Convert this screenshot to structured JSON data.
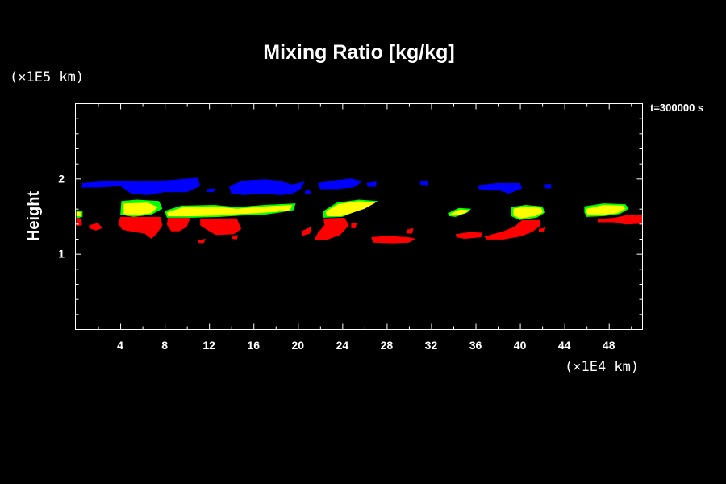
{
  "chart_data": {
    "type": "heatmap",
    "title": "Mixing Ratio [kg/kg]",
    "ylabel": "Height",
    "yunit": "(×1E5 km)",
    "xunit": "(×1E4 km)",
    "time_label": "t=300000 s",
    "xlim": [
      0,
      51
    ],
    "ylim": [
      0,
      3
    ],
    "xticks": [
      4,
      8,
      12,
      16,
      20,
      24,
      28,
      32,
      36,
      40,
      44,
      48
    ],
    "yticks": [
      1,
      2
    ],
    "x_minor_step": 2,
    "y_minor_step": 0.2,
    "grid": false,
    "colors": {
      "blue": "#0000ff",
      "red": "#ff0000",
      "yellow": "#ffff00",
      "green": "#00ff00"
    },
    "regions": [
      {
        "color": "blue",
        "polygon": [
          [
            0.6,
            1.94
          ],
          [
            3,
            1.97
          ],
          [
            6,
            1.96
          ],
          [
            8.5,
            1.98
          ],
          [
            11,
            2.01
          ],
          [
            11.2,
            1.9
          ],
          [
            10,
            1.82
          ],
          [
            8,
            1.82
          ],
          [
            6.5,
            1.78
          ],
          [
            5,
            1.8
          ],
          [
            4,
            1.9
          ],
          [
            2,
            1.88
          ],
          [
            0.5,
            1.88
          ]
        ]
      },
      {
        "color": "blue",
        "polygon": [
          [
            11.8,
            1.86
          ],
          [
            12.6,
            1.87
          ],
          [
            12.4,
            1.82
          ],
          [
            11.8,
            1.82
          ]
        ]
      },
      {
        "color": "blue",
        "polygon": [
          [
            13.8,
            1.9
          ],
          [
            15,
            1.97
          ],
          [
            17,
            1.99
          ],
          [
            18.3,
            1.97
          ],
          [
            19.5,
            1.92
          ],
          [
            20.6,
            1.96
          ],
          [
            20.2,
            1.85
          ],
          [
            19.5,
            1.8
          ],
          [
            18.5,
            1.78
          ],
          [
            16.5,
            1.8
          ],
          [
            15.2,
            1.78
          ],
          [
            14,
            1.8
          ]
        ]
      },
      {
        "color": "blue",
        "polygon": [
          [
            20.6,
            1.83
          ],
          [
            21,
            1.86
          ],
          [
            21.2,
            1.8
          ],
          [
            20.7,
            1.79
          ]
        ]
      },
      {
        "color": "blue",
        "polygon": [
          [
            21.8,
            1.94
          ],
          [
            23.5,
            1.98
          ],
          [
            24.8,
            2.0
          ],
          [
            25.8,
            1.96
          ],
          [
            25,
            1.88
          ],
          [
            23.5,
            1.86
          ],
          [
            22,
            1.86
          ]
        ]
      },
      {
        "color": "blue",
        "polygon": [
          [
            26.2,
            1.94
          ],
          [
            27.1,
            1.96
          ],
          [
            27.0,
            1.89
          ],
          [
            26.3,
            1.89
          ]
        ]
      },
      {
        "color": "blue",
        "polygon": [
          [
            31,
            1.96
          ],
          [
            31.8,
            1.97
          ],
          [
            31.7,
            1.91
          ],
          [
            31,
            1.92
          ]
        ]
      },
      {
        "color": "blue",
        "polygon": [
          [
            36.2,
            1.91
          ],
          [
            38,
            1.94
          ],
          [
            40,
            1.94
          ],
          [
            40.2,
            1.87
          ],
          [
            39,
            1.8
          ],
          [
            38.2,
            1.84
          ],
          [
            37,
            1.84
          ],
          [
            36.3,
            1.86
          ]
        ]
      },
      {
        "color": "blue",
        "polygon": [
          [
            42.2,
            1.92
          ],
          [
            42.8,
            1.93
          ],
          [
            42.8,
            1.87
          ],
          [
            42.3,
            1.87
          ]
        ]
      },
      {
        "color": "green",
        "polygon": [
          [
            0.05,
            1.58
          ],
          [
            0.6,
            1.57
          ],
          [
            0.6,
            1.49
          ],
          [
            0.05,
            1.47
          ]
        ]
      },
      {
        "color": "yellow",
        "polygon": [
          [
            0.05,
            1.56
          ],
          [
            0.5,
            1.55
          ],
          [
            0.5,
            1.5
          ],
          [
            0.05,
            1.5
          ]
        ]
      },
      {
        "color": "green",
        "polygon": [
          [
            4.1,
            1.7
          ],
          [
            5.5,
            1.72
          ],
          [
            7.5,
            1.7
          ],
          [
            7.8,
            1.6
          ],
          [
            6.8,
            1.52
          ],
          [
            5.2,
            1.49
          ],
          [
            4.0,
            1.52
          ]
        ]
      },
      {
        "color": "yellow",
        "polygon": [
          [
            4.3,
            1.67
          ],
          [
            6.5,
            1.68
          ],
          [
            7.4,
            1.62
          ],
          [
            6.8,
            1.54
          ],
          [
            5.2,
            1.51
          ],
          [
            4.3,
            1.53
          ]
        ]
      },
      {
        "color": "green",
        "polygon": [
          [
            8.0,
            1.57
          ],
          [
            9.5,
            1.64
          ],
          [
            12.5,
            1.65
          ],
          [
            14.5,
            1.62
          ],
          [
            17,
            1.65
          ],
          [
            19.8,
            1.67
          ],
          [
            19.6,
            1.58
          ],
          [
            18.5,
            1.55
          ],
          [
            17,
            1.52
          ],
          [
            15,
            1.51
          ],
          [
            13,
            1.49
          ],
          [
            10.5,
            1.48
          ],
          [
            8.2,
            1.48
          ]
        ]
      },
      {
        "color": "yellow",
        "polygon": [
          [
            8.2,
            1.55
          ],
          [
            9.7,
            1.62
          ],
          [
            12.5,
            1.63
          ],
          [
            14.5,
            1.6
          ],
          [
            17,
            1.63
          ],
          [
            19.5,
            1.65
          ],
          [
            19.3,
            1.58
          ],
          [
            18.2,
            1.56
          ],
          [
            16.5,
            1.54
          ],
          [
            14.8,
            1.53
          ],
          [
            13,
            1.51
          ],
          [
            10.5,
            1.5
          ],
          [
            8.3,
            1.5
          ]
        ]
      },
      {
        "color": "green",
        "polygon": [
          [
            22.3,
            1.57
          ],
          [
            23.5,
            1.68
          ],
          [
            25.5,
            1.72
          ],
          [
            27.2,
            1.7
          ],
          [
            26.2,
            1.62
          ],
          [
            25,
            1.55
          ],
          [
            24,
            1.49
          ],
          [
            22.3,
            1.48
          ]
        ]
      },
      {
        "color": "yellow",
        "polygon": [
          [
            22.5,
            1.56
          ],
          [
            23.6,
            1.66
          ],
          [
            25.5,
            1.7
          ],
          [
            27,
            1.68
          ],
          [
            26,
            1.6
          ],
          [
            24.8,
            1.54
          ],
          [
            23.9,
            1.5
          ],
          [
            22.6,
            1.5
          ]
        ]
      },
      {
        "color": "green",
        "polygon": [
          [
            33.5,
            1.54
          ],
          [
            34.5,
            1.61
          ],
          [
            35.6,
            1.6
          ],
          [
            35.3,
            1.55
          ],
          [
            34.2,
            1.49
          ],
          [
            33.6,
            1.5
          ]
        ]
      },
      {
        "color": "yellow",
        "polygon": [
          [
            33.7,
            1.53
          ],
          [
            34.6,
            1.59
          ],
          [
            35.4,
            1.58
          ],
          [
            35.1,
            1.54
          ],
          [
            34.2,
            1.51
          ],
          [
            33.8,
            1.51
          ]
        ]
      },
      {
        "color": "green",
        "polygon": [
          [
            39.2,
            1.62
          ],
          [
            40.5,
            1.65
          ],
          [
            42,
            1.63
          ],
          [
            42.3,
            1.55
          ],
          [
            41.5,
            1.48
          ],
          [
            40,
            1.45
          ],
          [
            39.2,
            1.5
          ]
        ]
      },
      {
        "color": "yellow",
        "polygon": [
          [
            39.4,
            1.6
          ],
          [
            40.5,
            1.63
          ],
          [
            41.9,
            1.61
          ],
          [
            42.1,
            1.55
          ],
          [
            41.4,
            1.5
          ],
          [
            40,
            1.47
          ],
          [
            39.4,
            1.51
          ]
        ]
      },
      {
        "color": "green",
        "polygon": [
          [
            45.8,
            1.63
          ],
          [
            47.5,
            1.67
          ],
          [
            49.5,
            1.66
          ],
          [
            49.8,
            1.6
          ],
          [
            49,
            1.53
          ],
          [
            47.5,
            1.5
          ],
          [
            46,
            1.49
          ],
          [
            45.8,
            1.55
          ]
        ]
      },
      {
        "color": "yellow",
        "polygon": [
          [
            46,
            1.6
          ],
          [
            47.5,
            1.65
          ],
          [
            49.3,
            1.64
          ],
          [
            49.5,
            1.6
          ],
          [
            48.8,
            1.54
          ],
          [
            47.5,
            1.52
          ],
          [
            46.1,
            1.51
          ],
          [
            46,
            1.55
          ]
        ]
      },
      {
        "color": "red",
        "polygon": [
          [
            0.05,
            1.48
          ],
          [
            0.5,
            1.47
          ],
          [
            0.55,
            1.38
          ],
          [
            0.05,
            1.37
          ]
        ]
      },
      {
        "color": "red",
        "polygon": [
          [
            1.2,
            1.38
          ],
          [
            2,
            1.41
          ],
          [
            2.4,
            1.34
          ],
          [
            1.8,
            1.31
          ],
          [
            1.2,
            1.34
          ]
        ]
      },
      {
        "color": "red",
        "polygon": [
          [
            4.0,
            1.49
          ],
          [
            7.6,
            1.49
          ],
          [
            7.8,
            1.38
          ],
          [
            7.3,
            1.27
          ],
          [
            6.8,
            1.2
          ],
          [
            6.2,
            1.27
          ],
          [
            5.2,
            1.29
          ],
          [
            4.2,
            1.32
          ],
          [
            3.8,
            1.4
          ]
        ]
      },
      {
        "color": "red",
        "polygon": [
          [
            8.3,
            1.48
          ],
          [
            10.3,
            1.48
          ],
          [
            10.0,
            1.36
          ],
          [
            9.3,
            1.3
          ],
          [
            8.6,
            1.3
          ],
          [
            8.2,
            1.39
          ]
        ]
      },
      {
        "color": "red",
        "polygon": [
          [
            11.0,
            1.18
          ],
          [
            11.7,
            1.2
          ],
          [
            11.5,
            1.14
          ],
          [
            11.0,
            1.15
          ]
        ]
      },
      {
        "color": "red",
        "polygon": [
          [
            11.2,
            1.47
          ],
          [
            14.5,
            1.47
          ],
          [
            14.9,
            1.33
          ],
          [
            14.2,
            1.26
          ],
          [
            12.6,
            1.25
          ],
          [
            11.8,
            1.32
          ],
          [
            11.2,
            1.38
          ]
        ]
      },
      {
        "color": "red",
        "polygon": [
          [
            14.1,
            1.24
          ],
          [
            14.6,
            1.25
          ],
          [
            14.5,
            1.19
          ],
          [
            14.1,
            1.2
          ]
        ]
      },
      {
        "color": "red",
        "polygon": [
          [
            20.3,
            1.3
          ],
          [
            21.2,
            1.36
          ],
          [
            21.1,
            1.27
          ],
          [
            20.4,
            1.24
          ]
        ]
      },
      {
        "color": "red",
        "polygon": [
          [
            22.3,
            1.47
          ],
          [
            24.2,
            1.48
          ],
          [
            24.6,
            1.38
          ],
          [
            23.8,
            1.25
          ],
          [
            22.5,
            1.18
          ],
          [
            21.5,
            1.19
          ],
          [
            21.8,
            1.28
          ],
          [
            22.4,
            1.38
          ]
        ]
      },
      {
        "color": "red",
        "polygon": [
          [
            24.8,
            1.4
          ],
          [
            25.3,
            1.41
          ],
          [
            25.2,
            1.34
          ],
          [
            24.8,
            1.34
          ]
        ]
      },
      {
        "color": "red",
        "polygon": [
          [
            26.6,
            1.22
          ],
          [
            28,
            1.24
          ],
          [
            30,
            1.22
          ],
          [
            30.6,
            1.2
          ],
          [
            30.0,
            1.15
          ],
          [
            28.5,
            1.14
          ],
          [
            26.8,
            1.15
          ]
        ]
      },
      {
        "color": "red",
        "polygon": [
          [
            29.8,
            1.32
          ],
          [
            30.4,
            1.34
          ],
          [
            30.3,
            1.27
          ],
          [
            29.8,
            1.27
          ]
        ]
      },
      {
        "color": "red",
        "polygon": [
          [
            34.2,
            1.26
          ],
          [
            35.5,
            1.29
          ],
          [
            36.6,
            1.28
          ],
          [
            36.5,
            1.22
          ],
          [
            35,
            1.2
          ],
          [
            34.3,
            1.22
          ]
        ]
      },
      {
        "color": "red",
        "polygon": [
          [
            36.8,
            1.23
          ],
          [
            38.5,
            1.3
          ],
          [
            39.5,
            1.36
          ],
          [
            40.2,
            1.45
          ],
          [
            41.8,
            1.45
          ],
          [
            41.8,
            1.37
          ],
          [
            41.1,
            1.29
          ],
          [
            40,
            1.23
          ],
          [
            38.5,
            1.19
          ],
          [
            37,
            1.19
          ]
        ]
      },
      {
        "color": "red",
        "polygon": [
          [
            41.7,
            1.33
          ],
          [
            42.3,
            1.35
          ],
          [
            42.2,
            1.29
          ],
          [
            41.7,
            1.29
          ]
        ]
      },
      {
        "color": "red",
        "polygon": [
          [
            47.0,
            1.46
          ],
          [
            48.5,
            1.48
          ],
          [
            49.8,
            1.52
          ],
          [
            51,
            1.52
          ],
          [
            51,
            1.4
          ],
          [
            49.5,
            1.39
          ],
          [
            48.5,
            1.42
          ],
          [
            47,
            1.42
          ]
        ]
      }
    ]
  }
}
